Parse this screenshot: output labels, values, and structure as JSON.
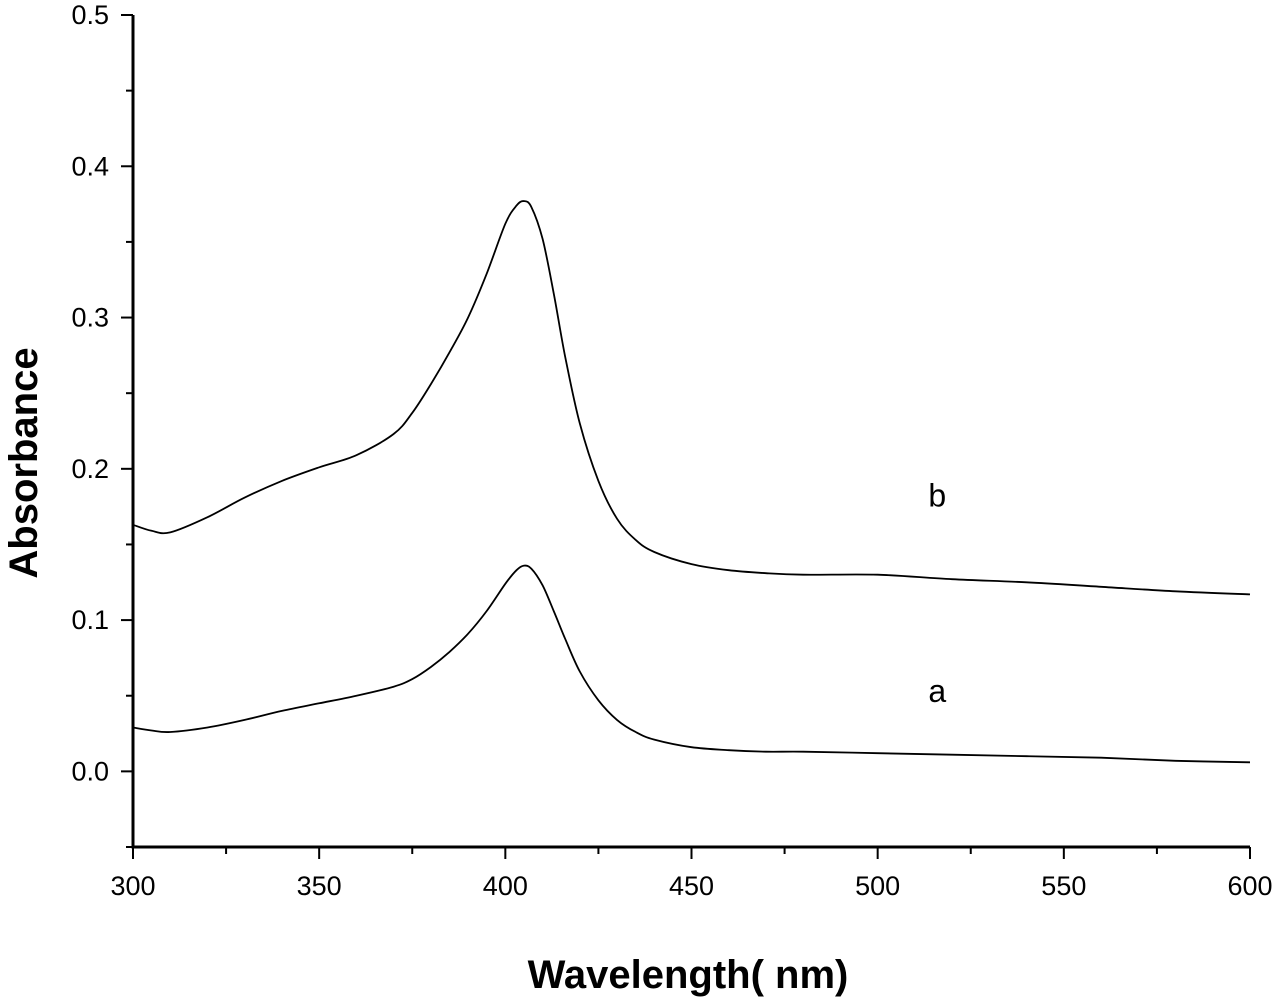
{
  "chart_data": {
    "type": "line",
    "title": "",
    "xlabel": "Wavelength( nm)",
    "ylabel": "Absorbance",
    "xlim": [
      300,
      600
    ],
    "ylim": [
      -0.05,
      0.5
    ],
    "xticks": [
      300,
      350,
      400,
      450,
      500,
      550,
      600
    ],
    "xtick_labels": [
      "300",
      "350",
      "400",
      "450",
      "500",
      "550",
      "600"
    ],
    "yticks": [
      0.0,
      0.1,
      0.2,
      0.3,
      0.4,
      0.5
    ],
    "ytick_labels": [
      "0.0",
      "0.1",
      "0.2",
      "0.3",
      "0.4",
      "0.5"
    ],
    "grid": false,
    "series": [
      {
        "name": "a",
        "label_at": [
          516,
          0.046
        ],
        "x": [
          300,
          305,
          310,
          320,
          330,
          340,
          350,
          360,
          370,
          375,
          380,
          385,
          390,
          395,
          400,
          403,
          405,
          407,
          410,
          413,
          416,
          420,
          425,
          430,
          435,
          440,
          450,
          460,
          470,
          480,
          500,
          520,
          540,
          560,
          580,
          600
        ],
        "y": [
          0.029,
          0.027,
          0.026,
          0.029,
          0.034,
          0.04,
          0.045,
          0.05,
          0.056,
          0.061,
          0.069,
          0.079,
          0.091,
          0.106,
          0.124,
          0.133,
          0.136,
          0.134,
          0.123,
          0.106,
          0.088,
          0.066,
          0.047,
          0.034,
          0.026,
          0.021,
          0.016,
          0.014,
          0.013,
          0.013,
          0.012,
          0.011,
          0.01,
          0.009,
          0.007,
          0.006
        ]
      },
      {
        "name": "b",
        "label_at": [
          516,
          0.175
        ],
        "x": [
          300,
          305,
          310,
          320,
          330,
          340,
          350,
          360,
          370,
          375,
          380,
          385,
          390,
          395,
          400,
          403,
          405,
          407,
          410,
          413,
          416,
          420,
          425,
          430,
          435,
          440,
          450,
          460,
          470,
          480,
          500,
          520,
          540,
          560,
          580,
          600
        ],
        "y": [
          0.163,
          0.159,
          0.158,
          0.168,
          0.181,
          0.192,
          0.201,
          0.209,
          0.223,
          0.237,
          0.256,
          0.277,
          0.3,
          0.329,
          0.362,
          0.374,
          0.377,
          0.373,
          0.352,
          0.316,
          0.275,
          0.23,
          0.192,
          0.167,
          0.153,
          0.145,
          0.137,
          0.133,
          0.131,
          0.13,
          0.13,
          0.127,
          0.125,
          0.122,
          0.119,
          0.117
        ]
      }
    ]
  }
}
